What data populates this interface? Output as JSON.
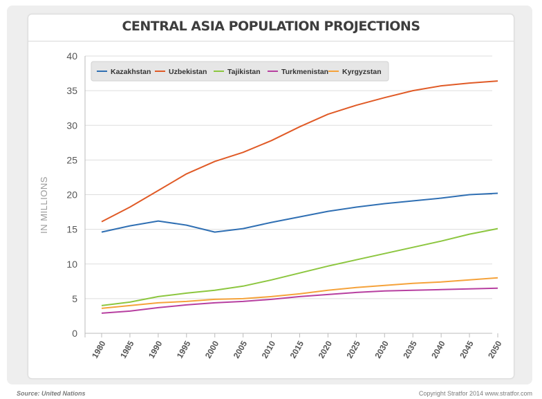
{
  "chart_data": {
    "type": "line",
    "title": "CENTRAL ASIA POPULATION PROJECTIONS",
    "ylabel": "IN MILLIONS",
    "xlabel": "",
    "x": [
      1980,
      1985,
      1990,
      1995,
      2000,
      2005,
      2010,
      2015,
      2020,
      2025,
      2030,
      2035,
      2040,
      2045,
      2050
    ],
    "ylim": [
      0,
      40
    ],
    "yticks": [
      0,
      5,
      10,
      15,
      20,
      25,
      30,
      35,
      40
    ],
    "grid": true,
    "legend_position": "top-left",
    "series": [
      {
        "name": "Kazakhstan",
        "color": "#2f6fb3",
        "values": [
          14.6,
          15.5,
          16.2,
          15.6,
          14.6,
          15.1,
          16.0,
          16.8,
          17.6,
          18.2,
          18.7,
          19.1,
          19.5,
          20.0,
          20.2
        ]
      },
      {
        "name": "Uzbekistan",
        "color": "#e05a26",
        "values": [
          16.1,
          18.2,
          20.6,
          23.0,
          24.8,
          26.1,
          27.8,
          29.8,
          31.6,
          32.9,
          34.0,
          35.0,
          35.7,
          36.1,
          36.4
        ]
      },
      {
        "name": "Tajikistan",
        "color": "#8cc63f",
        "values": [
          4.0,
          4.5,
          5.3,
          5.8,
          6.2,
          6.8,
          7.7,
          8.7,
          9.7,
          10.6,
          11.5,
          12.4,
          13.3,
          14.3,
          15.1
        ]
      },
      {
        "name": "Turkmenistan",
        "color": "#b73fa0",
        "values": [
          2.9,
          3.2,
          3.7,
          4.1,
          4.4,
          4.6,
          4.9,
          5.3,
          5.6,
          5.9,
          6.1,
          6.2,
          6.3,
          6.4,
          6.5
        ]
      },
      {
        "name": "Kyrgyzstan",
        "color": "#f5a23a",
        "values": [
          3.6,
          4.0,
          4.4,
          4.6,
          4.9,
          5.0,
          5.3,
          5.7,
          6.2,
          6.6,
          6.9,
          7.2,
          7.4,
          7.7,
          8.0
        ]
      }
    ]
  },
  "footer": {
    "source": "Source: United Nations",
    "copyright": "Copyright Stratfor 2014   www.stratfor.com"
  }
}
